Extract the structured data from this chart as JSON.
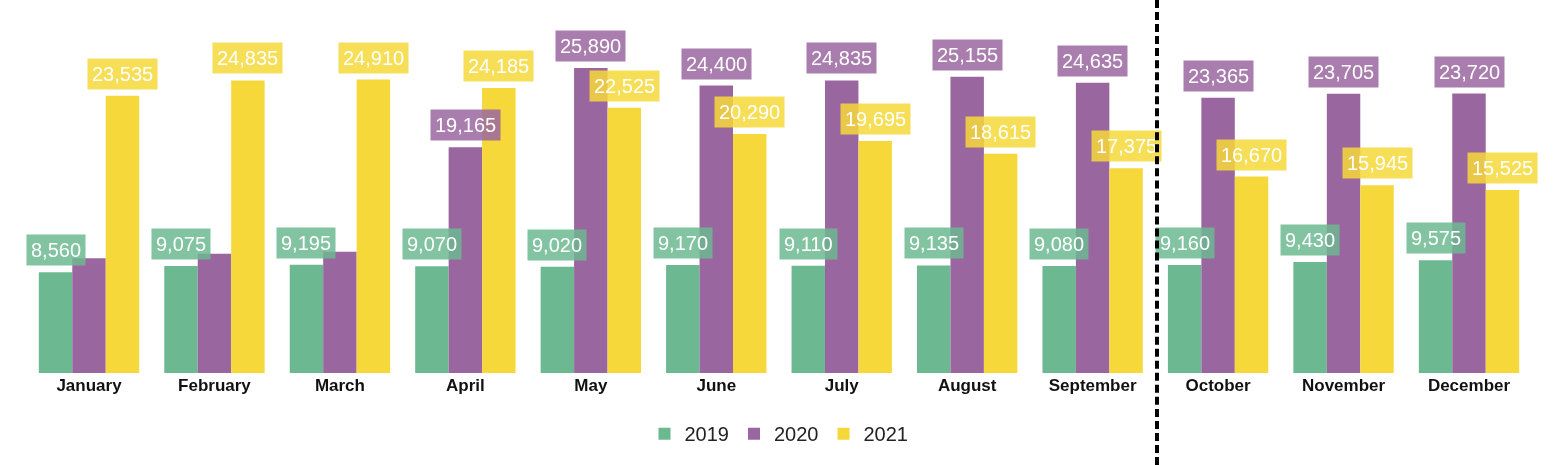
{
  "chart_data": {
    "type": "bar",
    "categories": [
      "January",
      "February",
      "March",
      "April",
      "May",
      "June",
      "July",
      "August",
      "September",
      "October",
      "November",
      "December"
    ],
    "series": [
      {
        "name": "2019",
        "color": "#6cb891",
        "values": [
          8560,
          9075,
          9195,
          9070,
          9020,
          9170,
          9110,
          9135,
          9080,
          9160,
          9430,
          9575
        ],
        "value_labels": [
          "8,560",
          "9,075",
          "9,195",
          "9,070",
          "9,020",
          "9,170",
          "9,110",
          "9,135",
          "9,080",
          "9,160",
          "9,430",
          "9,575"
        ]
      },
      {
        "name": "2020",
        "color": "#9a66a0",
        "values": [
          9740,
          10130,
          10290,
          19165,
          25890,
          24400,
          24835,
          25155,
          24635,
          23365,
          23705,
          23720
        ],
        "value_labels": [
          null,
          null,
          null,
          "19,165",
          "25,890",
          "24,400",
          "24,835",
          "25,155",
          "24,635",
          "23,365",
          "23,705",
          "23,720"
        ]
      },
      {
        "name": "2021",
        "color": "#f6d83a",
        "values": [
          23535,
          24835,
          24910,
          24185,
          22525,
          20290,
          19695,
          18615,
          17375,
          16670,
          15945,
          15525
        ],
        "value_labels": [
          "23,535",
          "24,835",
          "24,910",
          "24,185",
          "22,525",
          "20,290",
          "19,695",
          "18,615",
          "17,375",
          "16,670",
          "15,945",
          "15,525"
        ]
      }
    ],
    "legend": "bottom",
    "grid": false
  }
}
